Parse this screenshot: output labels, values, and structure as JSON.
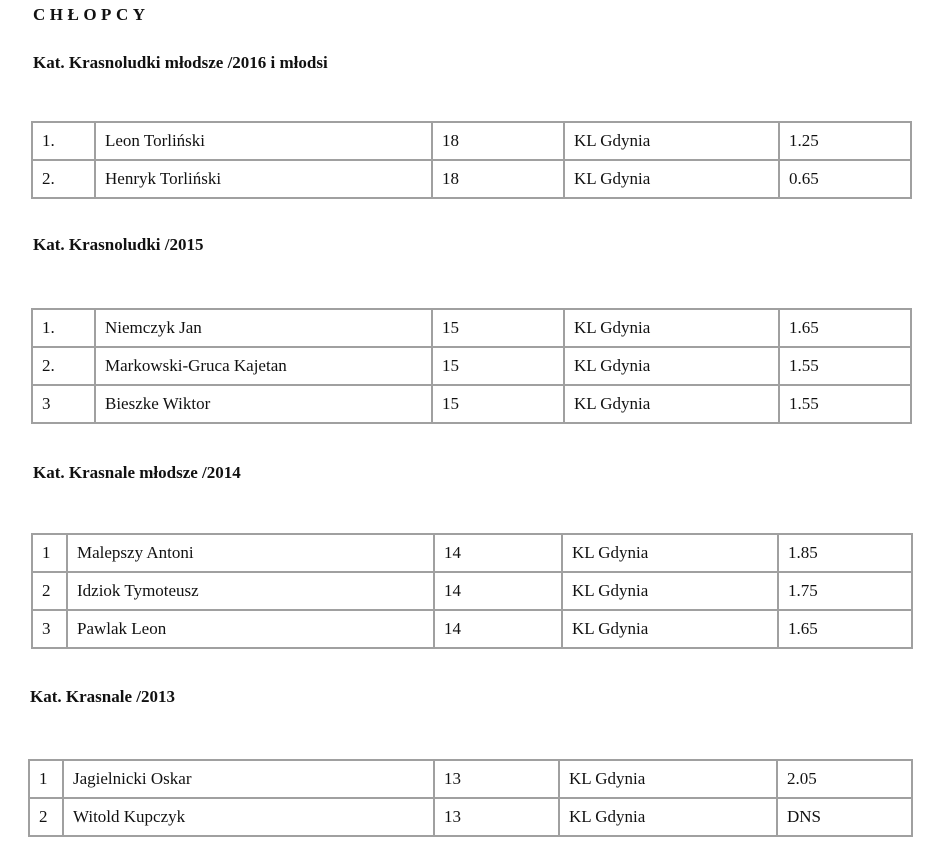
{
  "title": "CHŁOPCY",
  "sections": [
    {
      "category": "Kat. Krasnoludki młodsze  /2016 i młodsi",
      "rows": [
        [
          "1.",
          "Leon Torliński",
          "18",
          "KL Gdynia",
          "1.25"
        ],
        [
          "2.",
          "Henryk Torliński",
          "18",
          "KL Gdynia",
          "0.65"
        ]
      ]
    },
    {
      "category": "Kat. Krasnoludki  /2015",
      "rows": [
        [
          "1.",
          "Niemczyk Jan",
          "15",
          "KL Gdynia",
          "1.65"
        ],
        [
          "2.",
          "Markowski-Gruca Kajetan",
          "15",
          "KL Gdynia",
          "1.55"
        ],
        [
          "3",
          "Bieszke Wiktor",
          "15",
          "KL Gdynia",
          "1.55"
        ]
      ]
    },
    {
      "category": "Kat. Krasnale młodsze /2014",
      "rows": [
        [
          "1",
          "Malepszy Antoni",
          "14",
          "KL Gdynia",
          "1.85"
        ],
        [
          "2",
          "Idziok Tymoteusz",
          "14",
          "KL Gdynia",
          "1.75"
        ],
        [
          "3",
          "Pawlak Leon",
          "14",
          "KL Gdynia",
          "1.65"
        ]
      ]
    },
    {
      "category": "Kat. Krasnale /2013",
      "rows": [
        [
          "1",
          "Jagielnicki Oskar",
          "13",
          "KL Gdynia",
          "2.05"
        ],
        [
          "2",
          "Witold Kupczyk",
          "13",
          "KL Gdynia",
          "DNS"
        ]
      ]
    }
  ]
}
